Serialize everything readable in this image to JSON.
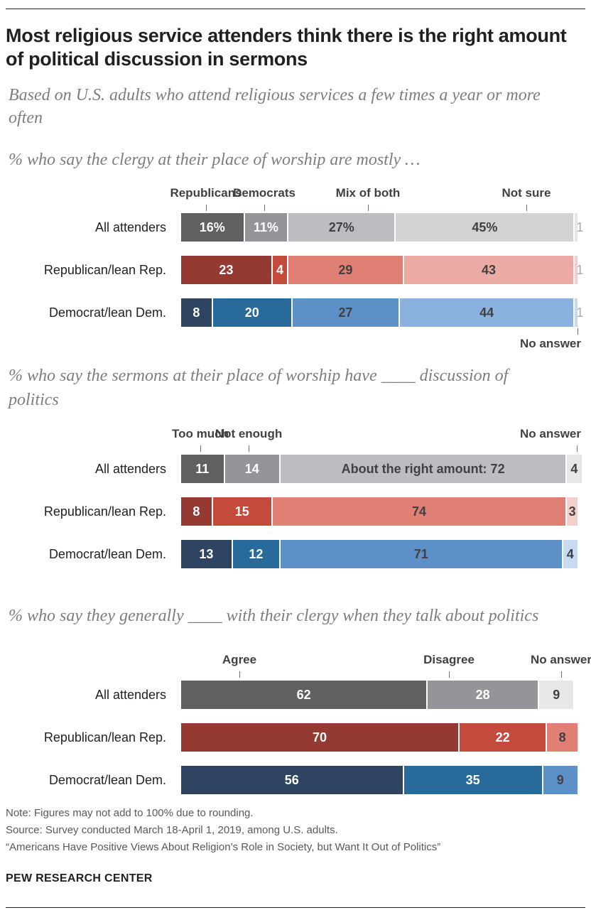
{
  "title": "Most religious service attenders think there is the right amount of political discussion in sermons",
  "subtitle": "Based on U.S. adults who attend religious services a few times a year or more often",
  "chart_data": [
    {
      "type": "bar",
      "orientation": "horizontal-stacked",
      "question": "% who say the clergy at their place of worship are mostly …",
      "categories": [
        "All attenders",
        "Republican/lean Rep.",
        "Democrat/lean Dem."
      ],
      "series": [
        {
          "name": "Republicans",
          "values": [
            16,
            23,
            8
          ]
        },
        {
          "name": "Democrats",
          "values": [
            11,
            4,
            20
          ]
        },
        {
          "name": "Mix of both",
          "values": [
            27,
            29,
            27
          ]
        },
        {
          "name": "Not sure",
          "values": [
            45,
            43,
            44
          ]
        },
        {
          "name": "No answer",
          "values": [
            1,
            1,
            1
          ]
        }
      ],
      "value_labels": [
        [
          "16%",
          "11%",
          "27%",
          "45%",
          "1"
        ],
        [
          "23",
          "4",
          "29",
          "43",
          "1"
        ],
        [
          "8",
          "20",
          "27",
          "44",
          "1"
        ]
      ],
      "xlim": [
        0,
        100
      ]
    },
    {
      "type": "bar",
      "orientation": "horizontal-stacked",
      "question": "% who say the sermons at their place of worship have ____ discussion of politics",
      "categories": [
        "All attenders",
        "Republican/lean Rep.",
        "Democrat/lean Dem."
      ],
      "series": [
        {
          "name": "Too much",
          "values": [
            11,
            8,
            13
          ]
        },
        {
          "name": "Not enough",
          "values": [
            14,
            15,
            12
          ]
        },
        {
          "name": "About the right amount",
          "values": [
            72,
            74,
            71
          ]
        },
        {
          "name": "No answer",
          "values": [
            4,
            3,
            4
          ]
        }
      ],
      "value_labels": [
        [
          "11",
          "14",
          "About the right amount: 72",
          "4"
        ],
        [
          "8",
          "15",
          "74",
          "3"
        ],
        [
          "13",
          "12",
          "71",
          "4"
        ]
      ],
      "xlim": [
        0,
        100
      ]
    },
    {
      "type": "bar",
      "orientation": "horizontal-stacked",
      "question": "% who say they generally ____ with their clergy when they talk about politics",
      "categories": [
        "All attenders",
        "Republican/lean Rep.",
        "Democrat/lean Dem."
      ],
      "series": [
        {
          "name": "Agree",
          "values": [
            62,
            70,
            56
          ]
        },
        {
          "name": "Disagree",
          "values": [
            28,
            22,
            35
          ]
        },
        {
          "name": "No answer",
          "values": [
            9,
            8,
            9
          ]
        }
      ],
      "value_labels": [
        [
          "62",
          "28",
          "9"
        ],
        [
          "70",
          "22",
          "8"
        ],
        [
          "56",
          "35",
          "9"
        ]
      ],
      "xlim": [
        0,
        100
      ]
    }
  ],
  "colors": {
    "all": [
      "#5f6062",
      "#939598",
      "#bcbdc0",
      "#d1d3d4",
      "#e6e7e8"
    ],
    "rep": [
      "#943a33",
      "#c44a3c",
      "#e07f73",
      "#ecaaa4",
      "#f3d0cb"
    ],
    "dem": [
      "#2f4461",
      "#286a9a",
      "#5e90c8",
      "#8bb2de",
      "#c7daf0"
    ]
  },
  "notes": {
    "note": "Note: Figures may not add to 100% due to rounding.",
    "source": "Source: Survey conducted March 18-April 1, 2019, among U.S. adults.",
    "report": "“Americans Have Positive Views About Religion’s Role in Society, but Want It Out of Politics”",
    "brand": "PEW RESEARCH CENTER"
  }
}
